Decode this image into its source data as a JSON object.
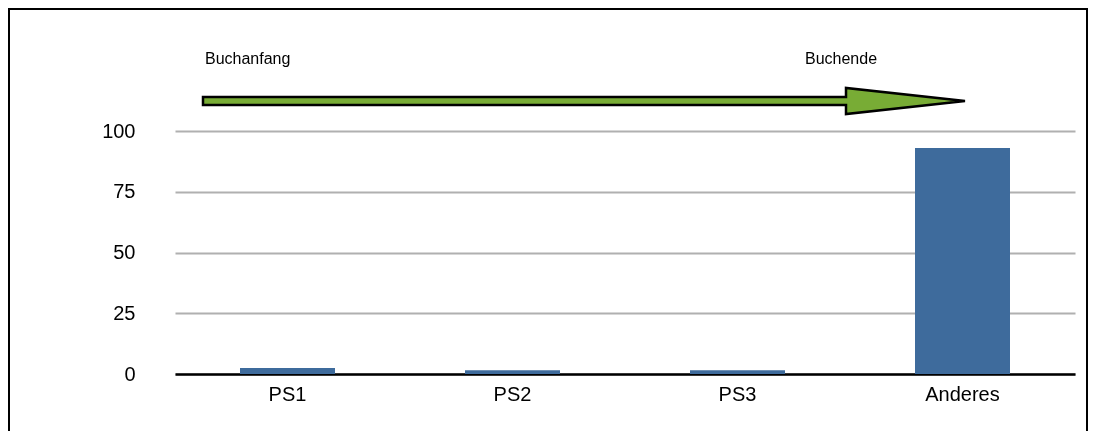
{
  "chart_data": {
    "type": "bar",
    "categories": [
      "PS1",
      "PS2",
      "PS3",
      "Anderes"
    ],
    "values": [
      2.5,
      1.5,
      1.5,
      93
    ],
    "color": "#3e6b9c",
    "ylim": [
      0,
      100
    ],
    "yticks": [
      0,
      25,
      50,
      75,
      100
    ],
    "grid": "y",
    "annotations": [
      "Buchanfang",
      "Buchende"
    ]
  }
}
